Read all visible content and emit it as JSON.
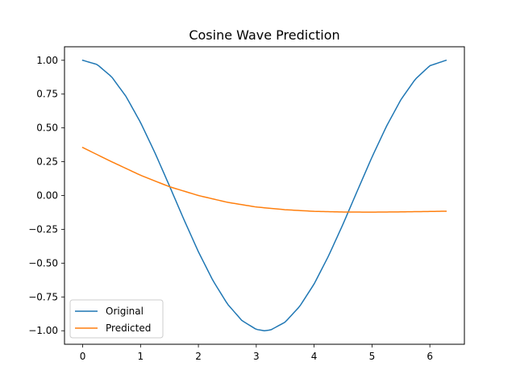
{
  "chart_data": {
    "type": "line",
    "title": "Cosine Wave Prediction",
    "xlabel": "",
    "ylabel": "",
    "xlim": [
      -0.314,
      6.597
    ],
    "ylim": [
      -1.1,
      1.1
    ],
    "xticks": [
      0,
      1,
      2,
      3,
      4,
      5,
      6
    ],
    "xtick_labels": [
      "0",
      "1",
      "2",
      "3",
      "4",
      "5",
      "6"
    ],
    "yticks": [
      1.0,
      0.75,
      0.5,
      0.25,
      0.0,
      -0.25,
      -0.5,
      -0.75,
      -1.0
    ],
    "ytick_labels": [
      "1.00",
      "0.75",
      "0.50",
      "0.25",
      "0.00",
      "−0.25",
      "−0.50",
      "−0.75",
      "−1.00"
    ],
    "grid": false,
    "legend_position": "bottom-left",
    "series": [
      {
        "name": "Original",
        "color": "#1f77b4",
        "x": [
          0,
          0.25,
          0.5,
          0.75,
          1.0,
          1.25,
          1.5,
          1.75,
          2.0,
          2.25,
          2.5,
          2.75,
          3.0,
          3.14,
          3.25,
          3.5,
          3.75,
          4.0,
          4.25,
          4.5,
          4.75,
          5.0,
          5.25,
          5.5,
          5.75,
          6.0,
          6.28
        ],
        "y": [
          1.0,
          0.969,
          0.878,
          0.732,
          0.54,
          0.315,
          0.071,
          -0.178,
          -0.416,
          -0.628,
          -0.801,
          -0.924,
          -0.99,
          -1.0,
          -0.994,
          -0.936,
          -0.82,
          -0.654,
          -0.446,
          -0.211,
          0.038,
          0.284,
          0.512,
          0.709,
          0.861,
          0.96,
          1.0
        ]
      },
      {
        "name": "Predicted",
        "color": "#ff7f0e",
        "x": [
          0,
          0.5,
          1.0,
          1.5,
          2.0,
          2.5,
          3.0,
          3.5,
          4.0,
          4.5,
          5.0,
          5.5,
          6.0,
          6.28
        ],
        "y": [
          0.355,
          0.25,
          0.15,
          0.065,
          0.0,
          -0.05,
          -0.085,
          -0.105,
          -0.117,
          -0.122,
          -0.123,
          -0.121,
          -0.118,
          -0.116
        ]
      }
    ]
  }
}
